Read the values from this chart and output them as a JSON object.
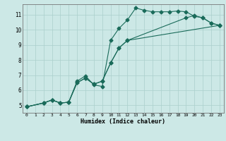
{
  "xlabel": "Humidex (Indice chaleur)",
  "xlim": [
    -0.5,
    23.5
  ],
  "ylim": [
    4.5,
    11.7
  ],
  "xticks": [
    0,
    1,
    2,
    3,
    4,
    5,
    6,
    7,
    8,
    9,
    10,
    11,
    12,
    13,
    14,
    15,
    16,
    17,
    18,
    19,
    20,
    21,
    22,
    23
  ],
  "yticks": [
    5,
    6,
    7,
    8,
    9,
    10,
    11
  ],
  "bg_color": "#cce8e6",
  "grid_color": "#aacfcc",
  "line_color": "#1a6b5a",
  "line1_x": [
    0,
    2,
    3,
    4,
    5,
    6,
    7,
    8,
    9,
    10,
    11,
    12,
    13,
    14,
    15,
    16,
    17,
    18,
    19,
    20,
    21,
    22,
    23
  ],
  "line1_y": [
    4.9,
    5.15,
    5.35,
    5.15,
    5.2,
    6.6,
    6.95,
    6.35,
    6.25,
    9.3,
    10.1,
    10.65,
    11.45,
    11.3,
    11.2,
    11.2,
    11.2,
    11.25,
    11.2,
    10.9,
    10.8,
    10.45,
    10.3
  ],
  "line2_x": [
    0,
    2,
    3,
    4,
    5,
    6,
    7,
    8,
    9,
    10,
    11,
    12,
    23
  ],
  "line2_y": [
    4.9,
    5.15,
    5.35,
    5.15,
    5.2,
    6.5,
    6.8,
    6.4,
    6.6,
    7.8,
    8.8,
    9.3,
    10.3
  ],
  "line3_x": [
    0,
    2,
    3,
    4,
    5,
    6,
    7,
    8,
    9,
    10,
    11,
    12,
    19,
    20,
    21,
    22,
    23
  ],
  "line3_y": [
    4.9,
    5.15,
    5.35,
    5.15,
    5.2,
    6.5,
    6.8,
    6.4,
    6.6,
    7.8,
    8.8,
    9.3,
    10.8,
    10.95,
    10.8,
    10.45,
    10.3
  ]
}
